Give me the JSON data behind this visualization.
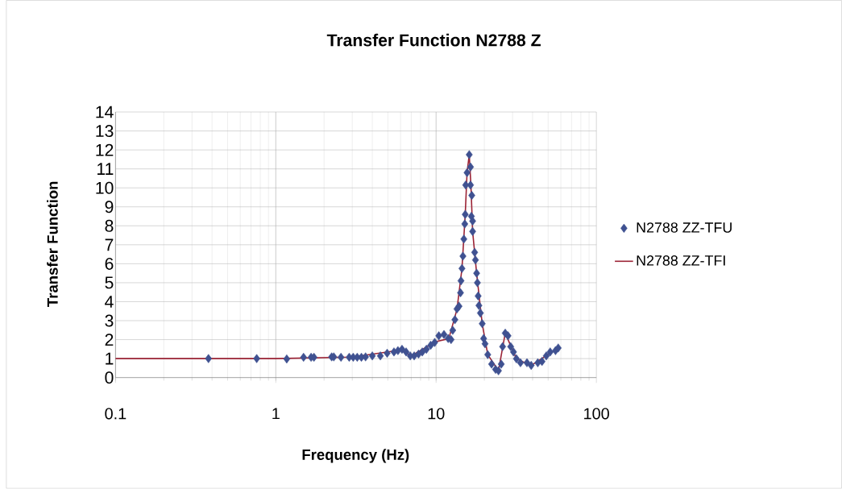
{
  "chart_data": {
    "type": "scatter",
    "title": "Transfer Function N2788 Z",
    "xlabel": "Frequency (Hz)",
    "ylabel": "Transfer Function",
    "log": "x",
    "grid": true,
    "legend": "right",
    "xlim": [
      0.1,
      100
    ],
    "xticks": [
      0.1,
      1,
      10,
      100
    ],
    "ylim": [
      0,
      14
    ],
    "yticks": [
      0,
      1,
      2,
      3,
      4,
      5,
      6,
      7,
      8,
      9,
      10,
      11,
      12,
      13,
      14
    ],
    "series": [
      {
        "name": "N2788 ZZ-TFU",
        "marker": "diamond",
        "color": "#3f5191",
        "x": [
          0.38,
          0.76,
          1.17,
          1.49,
          1.66,
          1.73,
          2.23,
          2.3,
          2.55,
          2.87,
          3.04,
          3.22,
          3.42,
          3.63,
          4.0,
          4.49,
          4.95,
          5.46,
          5.78,
          6.13,
          6.5,
          6.9,
          7.3,
          7.77,
          8.2,
          8.7,
          9.25,
          9.8,
          10.4,
          11.2,
          11.9,
          12.4,
          12.7,
          13.1,
          13.5,
          13.9,
          14.2,
          14.3,
          14.5,
          14.7,
          14.9,
          15.1,
          15.2,
          15.3,
          15.6,
          16.1,
          16.4,
          16.4,
          16.7,
          16.6,
          16.9,
          16.9,
          17.4,
          17.6,
          17.9,
          18.1,
          18.3,
          18.5,
          18.9,
          19.4,
          19.8,
          20.2,
          21.0,
          22.2,
          23.5,
          24.5,
          25.5,
          26.0,
          27.0,
          28.1,
          29.2,
          30.4,
          31.7,
          33.6,
          36.9,
          39.2,
          43.1,
          45.8,
          48.7,
          51.5,
          55.6,
          57.8
        ],
        "values": [
          1.0,
          1.0,
          0.98,
          1.07,
          1.07,
          1.07,
          1.09,
          1.09,
          1.07,
          1.07,
          1.07,
          1.07,
          1.07,
          1.09,
          1.14,
          1.14,
          1.28,
          1.35,
          1.42,
          1.49,
          1.35,
          1.14,
          1.14,
          1.24,
          1.35,
          1.49,
          1.7,
          1.85,
          2.2,
          2.27,
          2.06,
          2.0,
          2.49,
          3.05,
          3.62,
          3.76,
          4.47,
          5.1,
          5.75,
          6.4,
          7.3,
          8.1,
          8.6,
          10.15,
          10.8,
          11.75,
          11.1,
          10.15,
          9.6,
          8.5,
          8.25,
          7.7,
          6.6,
          6.2,
          5.5,
          5.0,
          4.3,
          3.8,
          3.4,
          2.84,
          2.06,
          1.78,
          1.21,
          0.71,
          0.43,
          0.36,
          0.71,
          1.63,
          2.34,
          2.2,
          1.63,
          1.35,
          0.99,
          0.78,
          0.78,
          0.64,
          0.78,
          0.85,
          1.14,
          1.35,
          1.42,
          1.56
        ]
      },
      {
        "name": "N2788 ZZ-TFI",
        "type": "line",
        "marker": "none",
        "line_style": "solid",
        "color": "#9b2335",
        "x": [
          0.1,
          1,
          3,
          6,
          7,
          10,
          12,
          13.5,
          14.5,
          15.2,
          15.6,
          16.1,
          16.5,
          16.9,
          17.9,
          19.4,
          21,
          24.5,
          27,
          31.7,
          39.2,
          57.8
        ],
        "values": [
          1.0,
          1.0,
          1.08,
          1.45,
          1.15,
          1.9,
          2.05,
          3.6,
          5.75,
          8.6,
          10.8,
          11.75,
          10.1,
          7.7,
          5.5,
          2.84,
          1.21,
          0.36,
          2.34,
          0.99,
          0.64,
          1.56
        ]
      }
    ]
  }
}
